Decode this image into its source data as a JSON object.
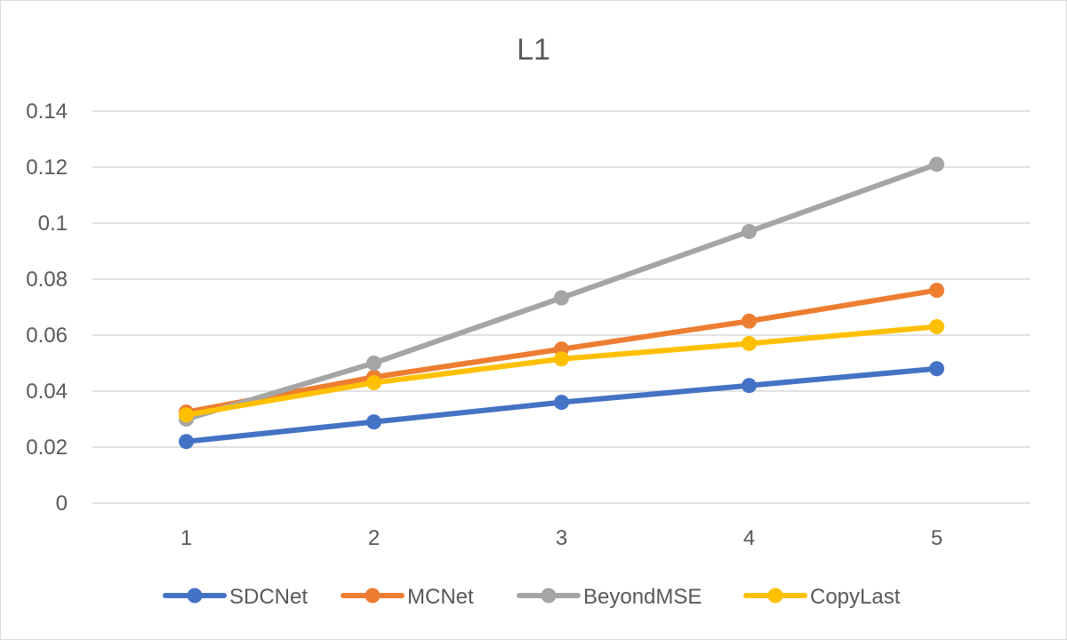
{
  "chart_data": {
    "type": "line",
    "title": "L1",
    "xlabel": "",
    "ylabel": "",
    "categories": [
      "1",
      "2",
      "3",
      "4",
      "5"
    ],
    "ylim": [
      0,
      0.14
    ],
    "yticks": [
      "0",
      "0.02",
      "0.04",
      "0.06",
      "0.08",
      "0.1",
      "0.12",
      "0.14"
    ],
    "grid": true,
    "legend_position": "bottom",
    "series": [
      {
        "name": "SDCNet",
        "color": "#4472C4",
        "values": [
          0.022,
          0.029,
          0.036,
          0.042,
          0.048
        ]
      },
      {
        "name": "MCNet",
        "color": "#ED7D31",
        "values": [
          0.0325,
          0.045,
          0.055,
          0.065,
          0.076
        ]
      },
      {
        "name": "BeyondMSE",
        "color": "#A5A5A5",
        "values": [
          0.03,
          0.05,
          0.0733,
          0.097,
          0.121
        ]
      },
      {
        "name": "CopyLast",
        "color": "#FFC000",
        "values": [
          0.0315,
          0.043,
          0.0515,
          0.057,
          0.063
        ]
      }
    ]
  }
}
